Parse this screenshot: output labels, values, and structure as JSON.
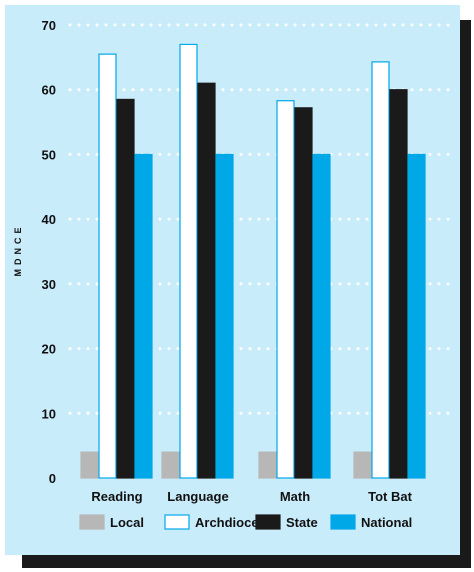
{
  "chart_data": {
    "type": "bar",
    "ylabel": "MDNCE",
    "ylim": [
      0,
      70
    ],
    "yticks": [
      0,
      10,
      20,
      30,
      40,
      50,
      60,
      70
    ],
    "grid": true,
    "legend_position": "bottom",
    "categories": [
      "Reading",
      "Language",
      "Math",
      "Tot Bat"
    ],
    "series": [
      {
        "name": "Local",
        "values": [
          4,
          4,
          4,
          4
        ],
        "color": "#b7b7b7",
        "outline": "#b7b7b7"
      },
      {
        "name": "Archdiocese",
        "values": [
          65.5,
          67,
          58.3,
          64.3
        ],
        "color": "#ffffff",
        "outline": "#00a8e8"
      },
      {
        "name": "State",
        "values": [
          58.5,
          61,
          57.2,
          60
        ],
        "color": "#1a1a1a",
        "outline": "#1a1a1a"
      },
      {
        "name": "National",
        "values": [
          50,
          50,
          50,
          50
        ],
        "color": "#00a8e8",
        "outline": "#00a8e8"
      }
    ]
  }
}
